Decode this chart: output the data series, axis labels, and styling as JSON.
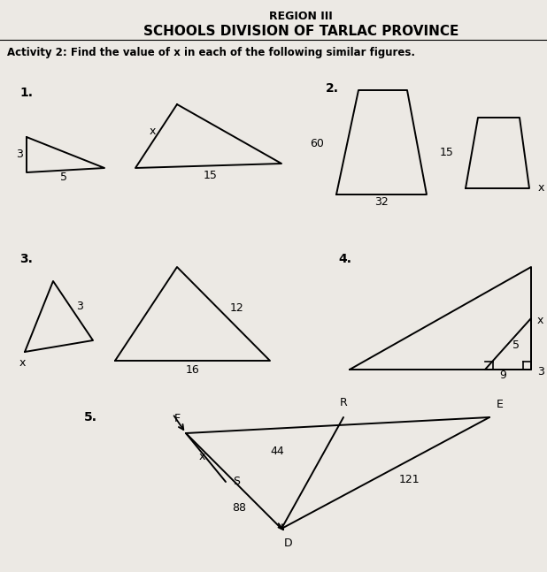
{
  "title1": "REGION III",
  "title2": "SCHOOLS DIVISION OF TARLAC PROVINCE",
  "activity": "Activity 2: Find the value of x in each of the following similar figures.",
  "bg_color": "#ece9e4",
  "fig_width": 6.18,
  "fig_height": 6.47,
  "dpi": 100
}
